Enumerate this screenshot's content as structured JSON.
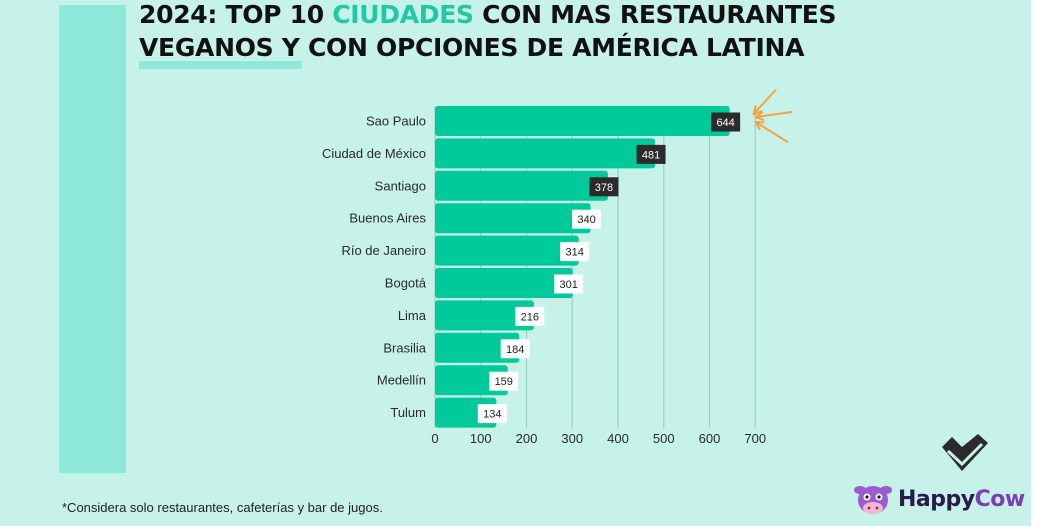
{
  "title": {
    "line1_pre": "2024: TOP 10 ",
    "line1_accent": "CIUDADES",
    "line1_post": " CON MAS RESTAURANTES",
    "line2": "VEGANOS Y CON OPCIONES DE AMÉRICA LATINA"
  },
  "footnote": "*Considera solo restaurantes, cafeterías y bar de jugos.",
  "brand": {
    "happy": "Happy",
    "cow": "Cow",
    "icon": "cow-logo-icon",
    "check_icon": "checkmark-icon"
  },
  "colors": {
    "background": "#c6f2ea",
    "bar": "#00c99a",
    "accent_text": "#1fc9a3",
    "highlight_label": "#2b2b2b",
    "arrow": "#f4a340"
  },
  "chart_data": {
    "type": "bar",
    "orientation": "horizontal",
    "categories": [
      "Sao Paulo",
      "Ciudad de México",
      "Santiago",
      "Buenos Aires",
      "Río de Janeiro",
      "Bogotá",
      "Lima",
      "Brasilia",
      "Medellín",
      "Tulum"
    ],
    "values": [
      644,
      481,
      378,
      340,
      314,
      301,
      216,
      184,
      159,
      134
    ],
    "xlim": [
      0,
      700
    ],
    "xticks": [
      0,
      100,
      200,
      300,
      400,
      500,
      600,
      700
    ],
    "grid": "vertical",
    "highlighted_labels": [
      "Sao Paulo",
      "Ciudad de México",
      "Santiago"
    ]
  }
}
